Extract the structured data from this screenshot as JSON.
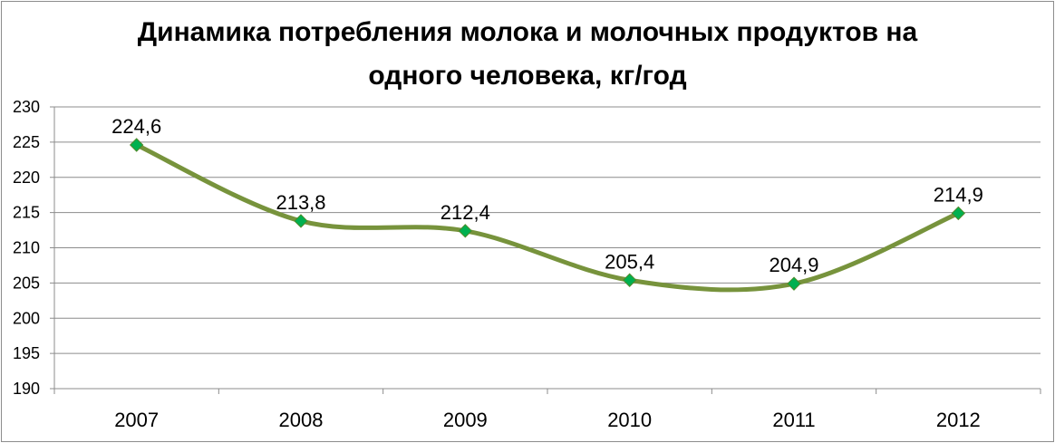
{
  "chart_data": {
    "type": "line",
    "title_line1": "Динамика потребления молока и молочных продуктов на",
    "title_line2": "одного человека, кг/год",
    "categories": [
      "2007",
      "2008",
      "2009",
      "2010",
      "2011",
      "2012"
    ],
    "values": [
      224.6,
      213.8,
      212.4,
      205.4,
      204.9,
      214.9
    ],
    "data_labels": [
      "224,6",
      "213,8",
      "212,4",
      "205,4",
      "204,9",
      "214,9"
    ],
    "ylim": [
      190,
      230
    ],
    "y_ticks": [
      "190",
      "195",
      "200",
      "205",
      "210",
      "215",
      "220",
      "225",
      "230"
    ],
    "smooth": true,
    "grid": true,
    "line_color": "#77933c",
    "marker_color": "#00b050",
    "marker_shape": "diamond",
    "xlabel": "",
    "ylabel": ""
  }
}
